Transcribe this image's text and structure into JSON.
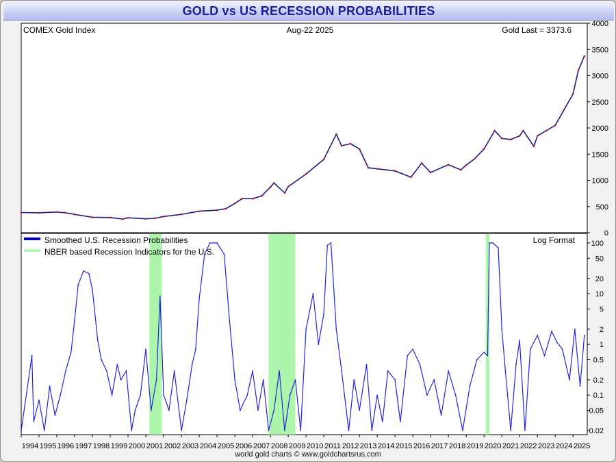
{
  "title": "GOLD vs US RECESSION PROBABILITIES",
  "credit": "world gold charts © www.goldchartsrus.com",
  "colors": {
    "title_text": "#1c1ca0",
    "gold_line": "#1a1a8a",
    "gold_dots": "#cc1111",
    "recession_line": "#2222dd",
    "nber_fill": "#9ef59e",
    "plot_background": "#ffffff"
  },
  "chart_data": [
    {
      "type": "line",
      "panel": "top",
      "title": "COMEX Gold Index",
      "date_label": "Aug-22  2025",
      "last_label": "Gold Last = 3373.6",
      "ylim": [
        0,
        4000
      ],
      "yticks": [
        0,
        500,
        1000,
        1500,
        2000,
        2500,
        3000,
        3500,
        4000
      ],
      "grid": false,
      "series": [
        {
          "x": [
            1994.0,
            1995.0,
            1996.0,
            1996.5,
            1997.0,
            1998.0,
            1999.0,
            1999.7,
            2000.0,
            2001.0,
            2001.5,
            2002.0,
            2003.0,
            2004.0,
            2005.0,
            2005.5,
            2006.0,
            2006.4,
            2007.0,
            2007.5,
            2008.0,
            2008.2,
            2008.8,
            2009.0,
            2010.0,
            2011.0,
            2011.7,
            2012.0,
            2012.5,
            2013.0,
            2013.5,
            2014.0,
            2015.0,
            2015.9,
            2016.5,
            2017.0,
            2018.0,
            2018.7,
            2019.0,
            2019.5,
            2020.0,
            2020.6,
            2021.0,
            2021.5,
            2022.0,
            2022.2,
            2022.8,
            2023.0,
            2023.5,
            2024.0,
            2024.5,
            2025.0,
            2025.3,
            2025.64
          ],
          "values": [
            385,
            380,
            395,
            380,
            350,
            295,
            290,
            260,
            285,
            265,
            275,
            310,
            350,
            410,
            430,
            460,
            560,
            650,
            650,
            700,
            870,
            950,
            760,
            880,
            1120,
            1400,
            1880,
            1660,
            1700,
            1600,
            1240,
            1220,
            1180,
            1060,
            1330,
            1150,
            1300,
            1200,
            1290,
            1420,
            1600,
            1950,
            1800,
            1780,
            1850,
            1950,
            1650,
            1850,
            1950,
            2050,
            2350,
            2650,
            3100,
            3373.6
          ]
        }
      ]
    },
    {
      "type": "area",
      "panel": "bottom",
      "scale_note": "Log Format",
      "y_scale": "log",
      "ylim": [
        0.02,
        100
      ],
      "ytick_labels": [
        "100",
        "50",
        "20",
        "10",
        "5",
        "2",
        "1",
        "0.5",
        "0.2",
        "0.1",
        "0.05",
        "0.02"
      ],
      "yticks": [
        100,
        50,
        20,
        10,
        5,
        2,
        1,
        0.5,
        0.2,
        0.1,
        0.05,
        0.02
      ],
      "xlim": [
        1994,
        2025.8
      ],
      "xtick_labels": [
        "1994",
        "1995",
        "1996",
        "1997",
        "1998",
        "1999",
        "2000",
        "2001",
        "2002",
        "2003",
        "2004",
        "2005",
        "2006",
        "2007",
        "2008",
        "2009",
        "2010",
        "2011",
        "2012",
        "2013",
        "2014",
        "2015",
        "2016",
        "2017",
        "2018",
        "2019",
        "2020",
        "2021",
        "2022",
        "2023",
        "2024",
        "2025"
      ],
      "legend": [
        {
          "label": "Smoothed U.S. Recession Probabilities",
          "color": "#0000cc"
        },
        {
          "label": "NBER based Recession Indicators for the U.S.",
          "color": "#b8f5b8"
        }
      ],
      "legend_position": "top-left",
      "recession_periods": [
        [
          2001.2,
          2001.9
        ],
        [
          2007.9,
          2009.4
        ],
        [
          2020.1,
          2020.3
        ]
      ],
      "series": [
        {
          "name": "Smoothed U.S. Recession Probabilities",
          "x": [
            1994.0,
            1994.6,
            1994.7,
            1995.0,
            1995.3,
            1995.6,
            1995.9,
            1996.2,
            1996.5,
            1996.8,
            1997.0,
            1997.2,
            1997.5,
            1997.8,
            1998.0,
            1998.3,
            1998.5,
            1998.8,
            1999.1,
            1999.4,
            1999.6,
            1999.9,
            2000.2,
            2000.4,
            2000.7,
            2001.0,
            2001.3,
            2001.6,
            2001.8,
            2002.0,
            2002.3,
            2002.6,
            2003.0,
            2003.3,
            2003.6,
            2003.8,
            2004.0,
            2004.3,
            2004.6,
            2005.0,
            2005.4,
            2005.7,
            2006.0,
            2006.3,
            2006.7,
            2007.0,
            2007.3,
            2007.6,
            2007.9,
            2008.2,
            2008.5,
            2008.8,
            2009.1,
            2009.4,
            2009.7,
            2010.0,
            2010.4,
            2010.7,
            2011.0,
            2011.2,
            2011.4,
            2011.7,
            2012.0,
            2012.4,
            2012.7,
            2013.0,
            2013.4,
            2013.7,
            2014.0,
            2014.3,
            2014.6,
            2015.0,
            2015.3,
            2015.7,
            2016.0,
            2016.4,
            2016.8,
            2017.2,
            2017.6,
            2018.0,
            2018.4,
            2018.8,
            2019.2,
            2019.6,
            2020.0,
            2020.2,
            2020.3,
            2020.5,
            2020.8,
            2021.0,
            2021.2,
            2021.5,
            2021.8,
            2022.0,
            2022.3,
            2022.6,
            2023.0,
            2023.4,
            2023.8,
            2024.1,
            2024.4,
            2024.8,
            2025.1,
            2025.4,
            2025.64
          ],
          "values": [
            0.02,
            0.6,
            0.03,
            0.08,
            0.02,
            0.15,
            0.04,
            0.1,
            0.3,
            0.7,
            3,
            15,
            28,
            25,
            12,
            1.2,
            0.5,
            0.3,
            0.1,
            0.4,
            0.2,
            0.3,
            0.02,
            0.05,
            0.1,
            0.8,
            0.05,
            0.2,
            9,
            0.1,
            0.05,
            0.3,
            0.02,
            0.08,
            0.4,
            0.8,
            8,
            60,
            100,
            100,
            60,
            3,
            0.2,
            0.05,
            0.1,
            0.3,
            0.05,
            0.2,
            0.02,
            0.05,
            0.3,
            0.02,
            0.1,
            0.2,
            0.02,
            2,
            10,
            1,
            4,
            90,
            100,
            2,
            0.3,
            0.02,
            0.2,
            0.05,
            0.4,
            0.02,
            0.1,
            0.03,
            0.3,
            0.2,
            0.03,
            0.6,
            0.8,
            0.4,
            0.1,
            0.2,
            0.04,
            0.3,
            0.1,
            0.02,
            0.15,
            0.5,
            0.7,
            0.6,
            100,
            100,
            80,
            2,
            0.3,
            0.02,
            0.4,
            1.2,
            0.02,
            0.8,
            1.5,
            0.6,
            1.8,
            1.1,
            0.8,
            0.2,
            2,
            0.15,
            1.5
          ]
        }
      ]
    }
  ]
}
